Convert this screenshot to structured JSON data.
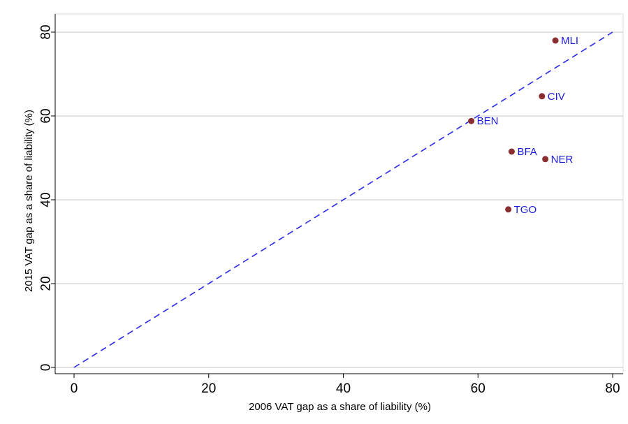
{
  "chart_data": {
    "type": "scatter",
    "title": "",
    "xlabel": "2006 VAT gap as a share of liability (%)",
    "ylabel": "2015 VAT gap as a share of liability (%)",
    "xlim": [
      0,
      80
    ],
    "ylim": [
      0,
      80
    ],
    "xticks": [
      0,
      20,
      40,
      60,
      80
    ],
    "yticks": [
      0,
      20,
      40,
      60,
      80
    ],
    "grid": "horizontal",
    "points": [
      {
        "label": "MLI",
        "x": 71.5,
        "y": 78
      },
      {
        "label": "CIV",
        "x": 69.5,
        "y": 64.7
      },
      {
        "label": "BEN",
        "x": 59,
        "y": 58.8
      },
      {
        "label": "BFA",
        "x": 65,
        "y": 51.5
      },
      {
        "label": "NER",
        "x": 70,
        "y": 49.7
      },
      {
        "label": "TGO",
        "x": 64.5,
        "y": 37.7
      }
    ],
    "reference_line": {
      "type": "45-degree",
      "from": [
        0,
        0
      ],
      "to": [
        80,
        80
      ],
      "style": "dashed"
    },
    "colors": {
      "point": "#8b2e32",
      "point_label": "#1a1adb",
      "reference_line": "#2a2ae6",
      "grid": "#c8c8c8",
      "axis": "#000000"
    }
  }
}
